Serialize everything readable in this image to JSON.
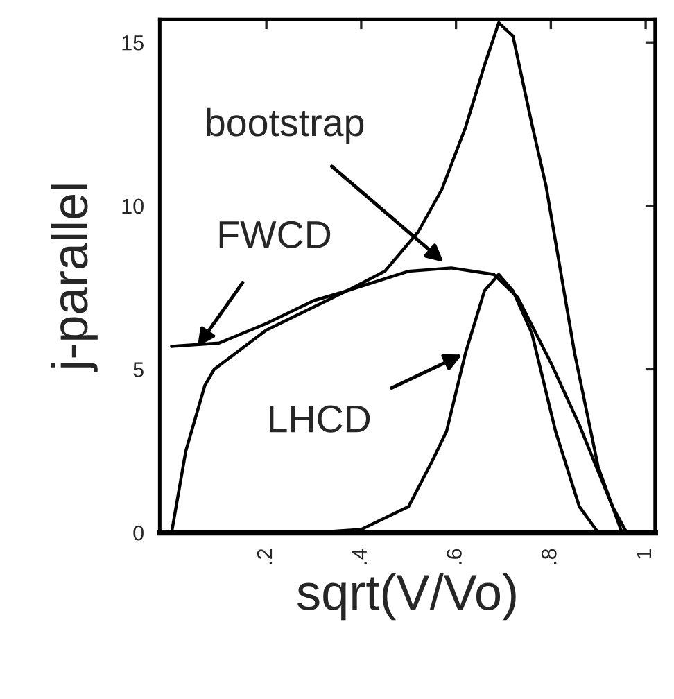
{
  "chart_data": {
    "type": "line",
    "xlabel": "sqrt(V/Vo)",
    "ylabel": "j-parallel",
    "xlim": [
      -0.025,
      1.02
    ],
    "ylim": [
      0,
      15.7
    ],
    "xticks": [
      {
        "value": 0.2,
        "label": ".2"
      },
      {
        "value": 0.4,
        "label": ".4"
      },
      {
        "value": 0.6,
        "label": ".6"
      },
      {
        "value": 0.8,
        "label": ".8"
      },
      {
        "value": 1,
        "label": "1"
      }
    ],
    "yticks": [
      0,
      5,
      10,
      15
    ],
    "grid": false,
    "legend": false,
    "marker": "none",
    "line_style": "solid",
    "series": [
      {
        "color": "#000000",
        "x": [
          0,
          0.1,
          0.2,
          0.3,
          0.37,
          0.45,
          0.52,
          0.57,
          0.62,
          0.66,
          0.69,
          0.72,
          0.76,
          0.79,
          0.85,
          0.9,
          0.95,
          1.0
        ],
        "values": [
          5.7,
          5.8,
          6.4,
          7.1,
          7.4,
          8.0,
          9.2,
          10.5,
          12.4,
          14.3,
          15.6,
          15.2,
          12.5,
          10.6,
          5.5,
          2.0,
          0,
          0
        ]
      },
      {
        "color": "#000000",
        "x": [
          0,
          0.03,
          0.07,
          0.09,
          0.2,
          0.37,
          0.5,
          0.59,
          0.68,
          0.73,
          0.8,
          0.86,
          0.93,
          0.96,
          1.0
        ],
        "values": [
          0,
          2.5,
          4.5,
          5.0,
          6.2,
          7.4,
          8.0,
          8.1,
          7.9,
          7.2,
          5.2,
          3.3,
          0.8,
          0,
          0
        ]
      },
      {
        "color": "#000000",
        "x": [
          0,
          0.3,
          0.4,
          0.5,
          0.55,
          0.58,
          0.62,
          0.66,
          0.69,
          0.72,
          0.76,
          0.81,
          0.86,
          0.9,
          1.0
        ],
        "values": [
          0,
          0,
          0.1,
          0.8,
          2.2,
          3.1,
          5.5,
          7.4,
          7.9,
          7.4,
          6.1,
          3.1,
          0.8,
          0,
          0
        ]
      }
    ],
    "annotations": [
      {
        "text": "bootstrap",
        "x": 0.58,
        "y": 8.2
      },
      {
        "text": "FWCD",
        "x": 0.05,
        "y": 5.6
      },
      {
        "text": "LHCD",
        "x": 0.62,
        "y": 5.5
      }
    ]
  }
}
